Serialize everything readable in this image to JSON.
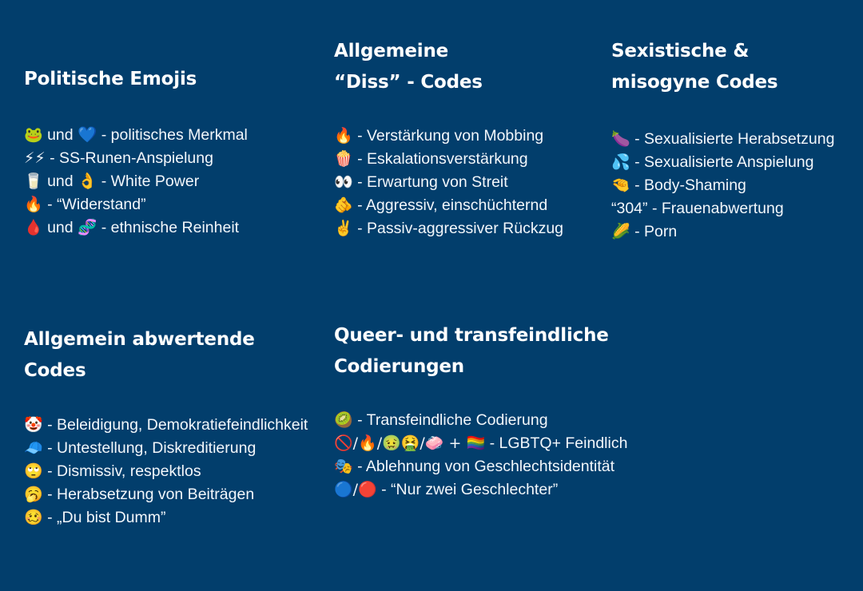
{
  "sections": {
    "politische": {
      "title": "Politische Emojis",
      "items": [
        {
          "emoji": "🐸",
          "text": " und 💙 - politisches Merkmal"
        },
        {
          "emoji": "⚡⚡",
          "text": " - SS-Runen-Anspielung"
        },
        {
          "emoji": "🥛",
          "text": " und 👌 - White Power"
        },
        {
          "emoji": "🔥",
          "text": " - “Widerstand”"
        },
        {
          "emoji": "🩸",
          "text": " und 🧬 - ethnische Reinheit"
        }
      ]
    },
    "diss": {
      "title": "Allgemeine\n“Diss” - Codes",
      "items": [
        {
          "emoji": "🔥",
          "text": " - Verstärkung von Mobbing"
        },
        {
          "emoji": "🍿",
          "text": " - Eskalationsverstärkung"
        },
        {
          "emoji": "👀",
          "text": " - Erwartung von Streit"
        },
        {
          "emoji": "🫵",
          "text": " - Aggressiv, einschüchternd"
        },
        {
          "emoji": "✌️",
          "text": " - Passiv-aggressiver Rückzug"
        }
      ]
    },
    "sexistisch": {
      "title": "Sexistische &\nmisogyne Codes",
      "items": [
        {
          "emoji": "🍆",
          "text": " - Sexualisierte Herabsetzung"
        },
        {
          "emoji": "💦",
          "text": " - Sexualisierte Anspielung"
        },
        {
          "emoji": "🤏",
          "text": " - Body-Shaming"
        },
        {
          "emoji": "",
          "text": "“304” - Frauenabwertung"
        },
        {
          "emoji": "🌽",
          "text": " - Porn"
        }
      ]
    },
    "abwertend": {
      "title": "Allgemein abwertende\nCodes",
      "items": [
        {
          "emoji": "🤡",
          "text": " - Beleidigung, Demokratiefeindlichkeit"
        },
        {
          "emoji": "🧢",
          "text": " - Untestellung, Diskreditierung"
        },
        {
          "emoji": "🙄",
          "text": " - Dismissiv, respektlos"
        },
        {
          "emoji": "🥱",
          "text": " - Herabsetzung von Beiträgen"
        },
        {
          "emoji": "🥴",
          "text": " - „Du bist Dumm”"
        }
      ]
    },
    "queer": {
      "title": "Queer- und transfeindliche\nCodierungen",
      "items": [
        {
          "emoji": "🥝",
          "text": " - Transfeindliche Codierung"
        },
        {
          "emoji": "🚫/🔥/🤢🤮/🧼 + 🏳️‍🌈",
          "text": " - LGBTQ+ Feindlich"
        },
        {
          "emoji": "🎭",
          "text": " - Ablehnung von Geschlechtsidentität"
        },
        {
          "emoji": "🔵/🔴",
          "text": " - “Nur zwei Geschlechter”"
        }
      ]
    }
  }
}
